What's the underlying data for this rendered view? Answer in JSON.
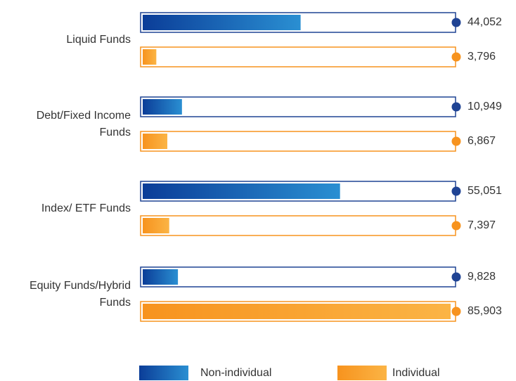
{
  "chart_data": {
    "type": "bar",
    "orientation": "horizontal",
    "categories": [
      "Liquid Funds",
      "Debt/Fixed Income Funds",
      "Index/ ETF Funds",
      "Equity Funds/Hybrid Funds"
    ],
    "series": [
      {
        "name": "Non-individual",
        "color": "#1f4394",
        "values": [
          44052,
          10949,
          55051,
          9828
        ],
        "value_labels": [
          "44,052",
          "10,949",
          "55,051",
          "9,828"
        ]
      },
      {
        "name": "Individual",
        "color": "#f7931e",
        "values": [
          3796,
          6867,
          7397,
          85903
        ],
        "value_labels": [
          "3,796",
          "6,867",
          "7,397",
          "85,903"
        ]
      }
    ]
  }
}
